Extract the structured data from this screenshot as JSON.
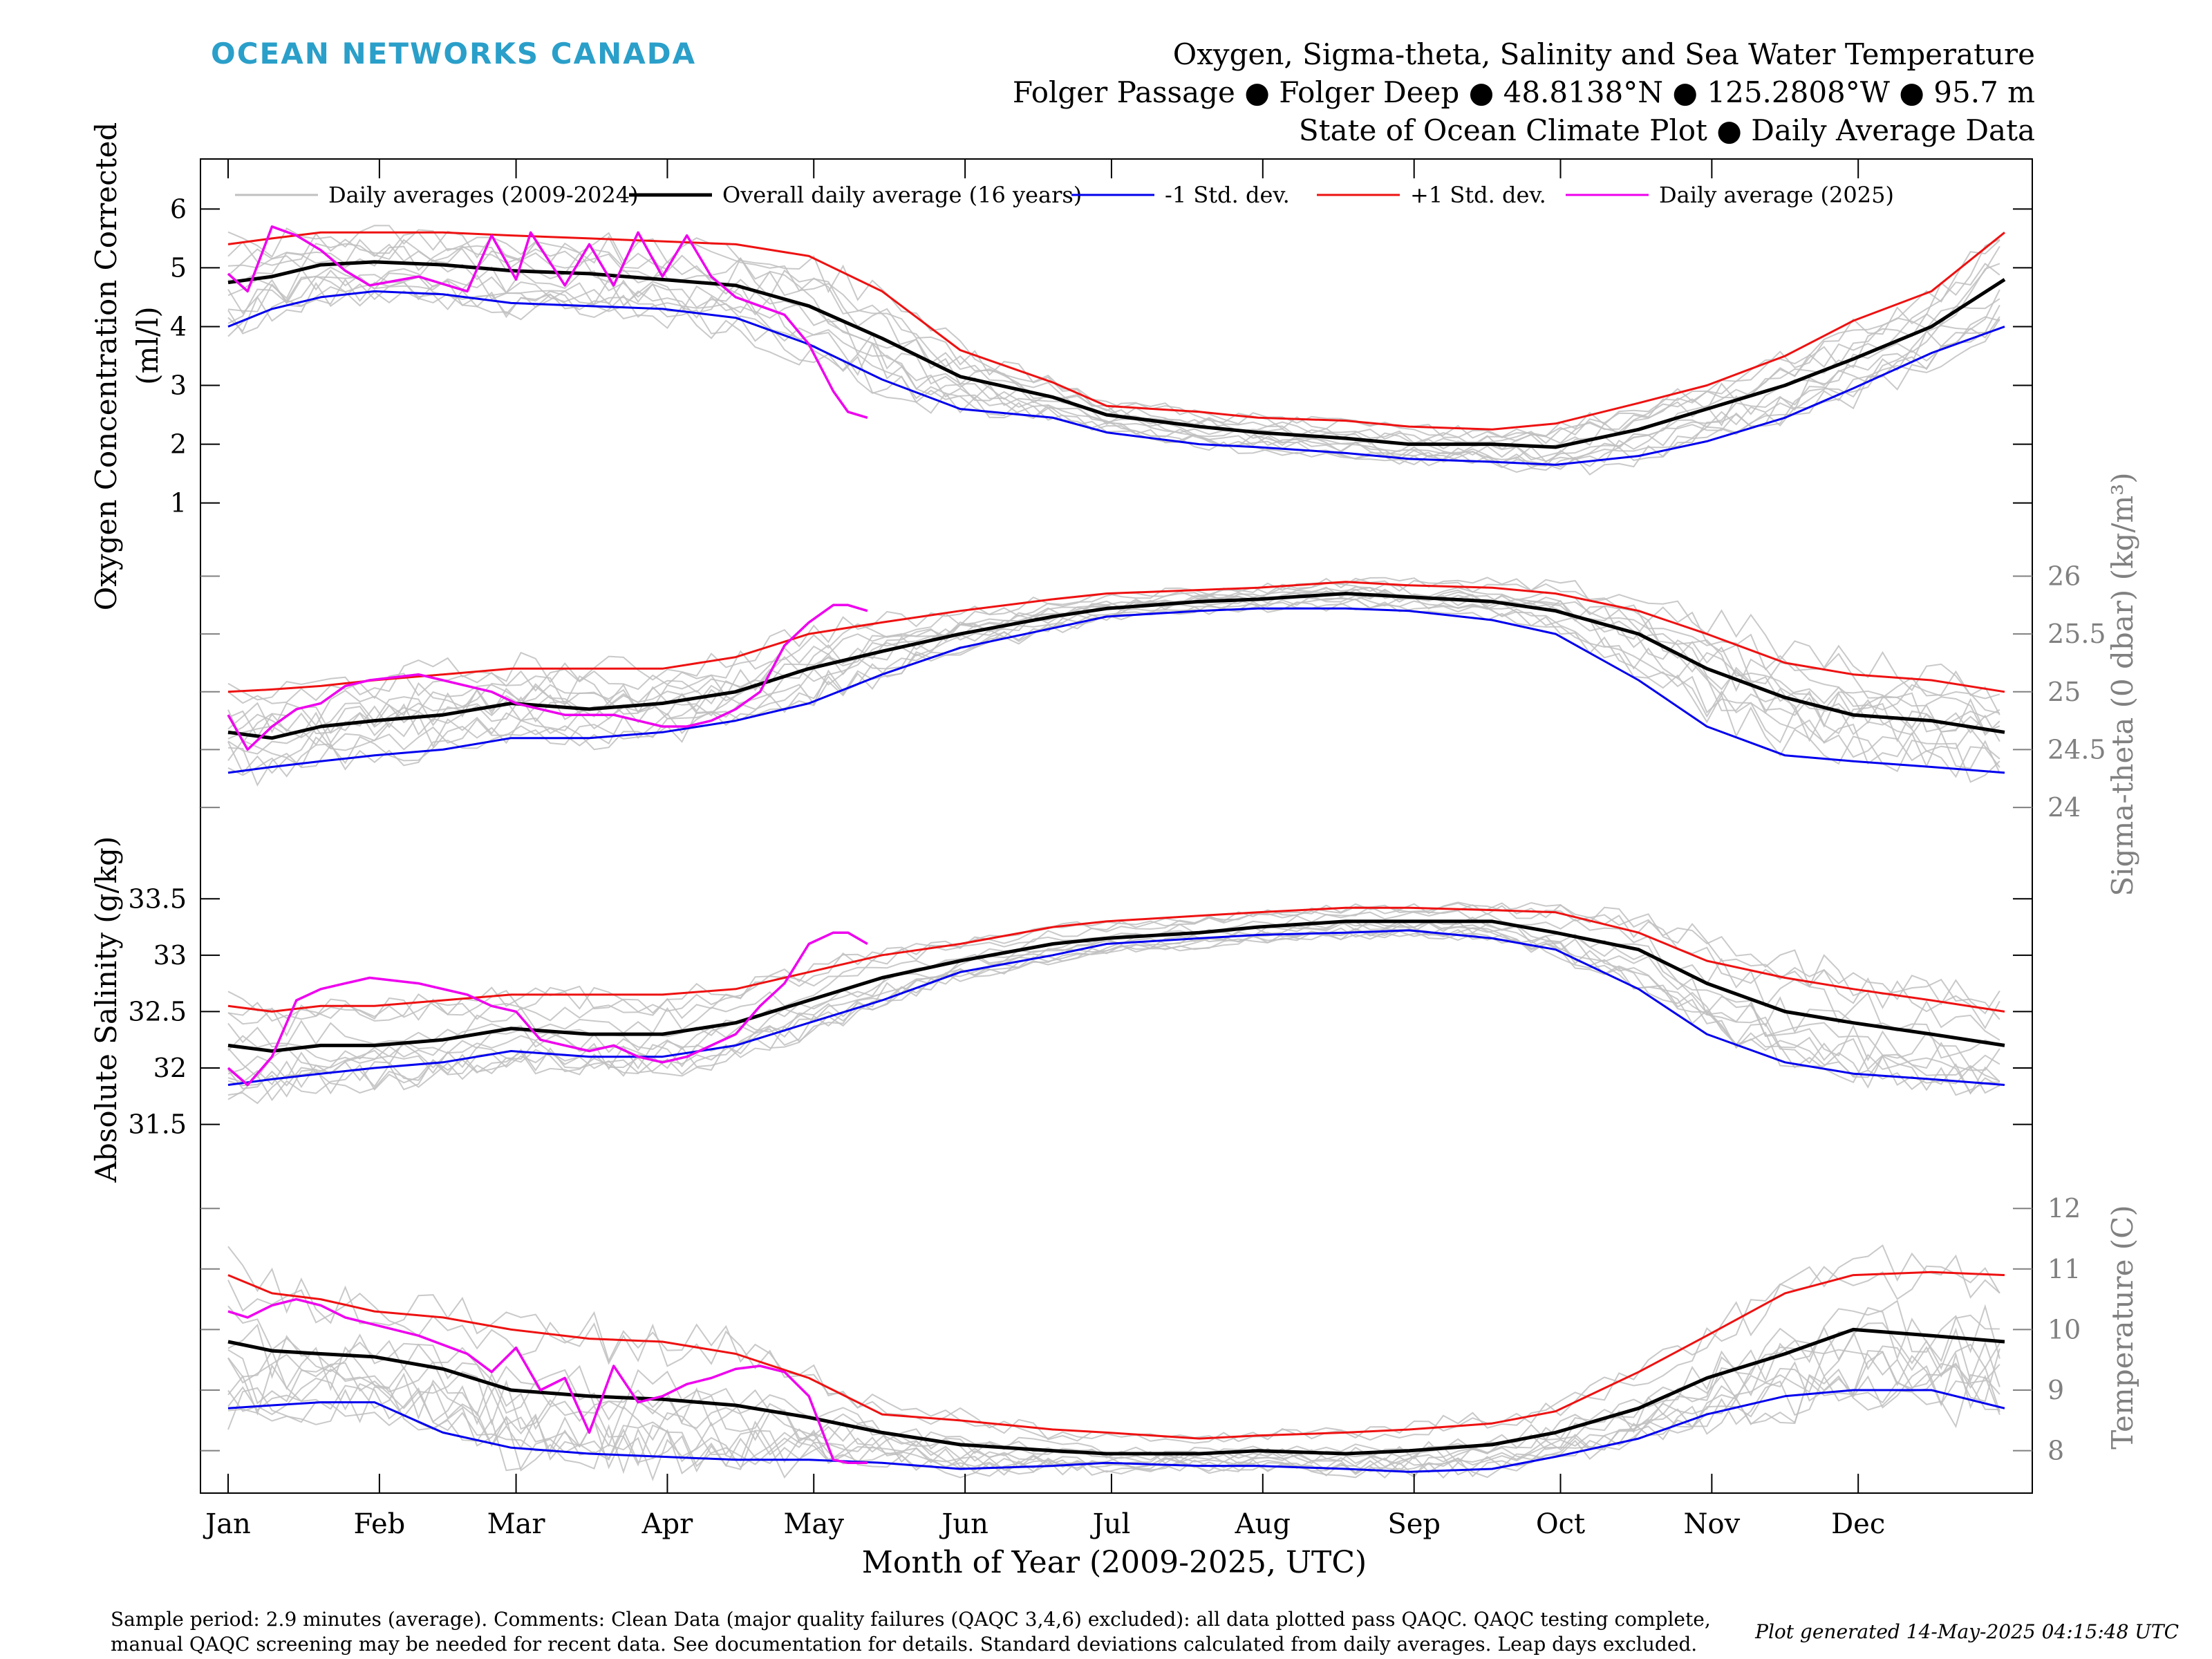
{
  "brand": {
    "name": "OCEAN NETWORKS CANADA",
    "color": "#2a9fc9"
  },
  "header": {
    "title": "Oxygen, Sigma-theta, Salinity and Sea Water Temperature",
    "subtitle1": "Folger Passage ● Folger Deep ● 48.8138°N ● 125.2808°W ● 95.7 m",
    "subtitle2": "State of Ocean Climate Plot ● Daily Average Data"
  },
  "legend": [
    {
      "label": "Daily averages (2009-2024)",
      "color": "#c0c0c0"
    },
    {
      "label": "Overall daily average (16 years)",
      "color": "#000000"
    },
    {
      "label": "-1 Std. dev.",
      "color": "#0000ee"
    },
    {
      "label": "+1 Std. dev.",
      "color": "#ee1111"
    },
    {
      "label": "Daily average (2025)",
      "color": "#ee00ee"
    }
  ],
  "xaxis": {
    "label": "Month of Year (2009-2025, UTC)",
    "months": [
      "Jan",
      "Feb",
      "Mar",
      "Apr",
      "May",
      "Jun",
      "Jul",
      "Aug",
      "Sep",
      "Oct",
      "Nov",
      "Dec"
    ]
  },
  "footer": {
    "note_line1": "Sample period: 2.9 minutes (average). Comments: Clean Data (major quality failures (QAQC 3,4,6) excluded): all data plotted pass QAQC. QAQC testing complete,",
    "note_line2": "manual QAQC screening may be needed for recent data. See documentation for details. Standard deviations calculated from daily averages. Leap days excluded.",
    "generated": "Plot generated 14-May-2025 04:15:48 UTC"
  },
  "colors": {
    "history": "#c0c0c0",
    "mean": "#000000",
    "minus_sd": "#0000ee",
    "plus_sd": "#ee1111",
    "current": "#ee00ee",
    "right_axis": "#808080"
  },
  "chart_data": [
    {
      "type": "line",
      "name": "oxygen",
      "ylabel_line1": "Oxygen Concentration Corrected",
      "ylabel_line2": "(ml/l)",
      "axis_side": "left",
      "ticks": [
        "1",
        "2",
        "3",
        "4",
        "5",
        "6"
      ],
      "x_unit": "day of year",
      "series": [
        {
          "name": "Overall daily average (16 years)",
          "x": [
            1,
            10,
            20,
            31,
            45,
            59,
            75,
            90,
            105,
            120,
            135,
            151,
            170,
            181,
            200,
            212,
            230,
            243,
            260,
            273,
            290,
            304,
            320,
            334,
            350,
            365
          ],
          "y": [
            4.75,
            4.85,
            5.05,
            5.1,
            5.05,
            4.95,
            4.9,
            4.8,
            4.7,
            4.35,
            3.8,
            3.15,
            2.8,
            2.5,
            2.3,
            2.2,
            2.1,
            2.0,
            2.0,
            1.95,
            2.25,
            2.6,
            3.0,
            3.45,
            4.0,
            4.8
          ]
        },
        {
          "name": "-1 Std. dev.",
          "x": [
            1,
            10,
            20,
            31,
            45,
            59,
            75,
            90,
            105,
            120,
            135,
            151,
            170,
            181,
            200,
            212,
            230,
            243,
            260,
            273,
            290,
            304,
            320,
            334,
            350,
            365
          ],
          "y": [
            4.0,
            4.3,
            4.5,
            4.6,
            4.55,
            4.4,
            4.35,
            4.3,
            4.15,
            3.7,
            3.1,
            2.6,
            2.45,
            2.2,
            2.0,
            1.95,
            1.85,
            1.75,
            1.7,
            1.65,
            1.8,
            2.05,
            2.45,
            2.95,
            3.55,
            4.0
          ]
        },
        {
          "name": "+1 Std. dev.",
          "x": [
            1,
            10,
            20,
            31,
            45,
            59,
            75,
            90,
            105,
            120,
            135,
            151,
            170,
            181,
            200,
            212,
            230,
            243,
            260,
            273,
            290,
            304,
            320,
            334,
            350,
            365
          ],
          "y": [
            5.4,
            5.5,
            5.6,
            5.6,
            5.6,
            5.55,
            5.5,
            5.45,
            5.4,
            5.2,
            4.6,
            3.6,
            3.05,
            2.65,
            2.55,
            2.45,
            2.4,
            2.3,
            2.25,
            2.35,
            2.7,
            3.0,
            3.5,
            4.1,
            4.6,
            5.6
          ]
        },
        {
          "name": "Daily average (2025)",
          "x": [
            1,
            5,
            10,
            15,
            20,
            25,
            30,
            40,
            50,
            55,
            60,
            63,
            70,
            75,
            80,
            85,
            90,
            95,
            100,
            105,
            110,
            115,
            120,
            125,
            128,
            132
          ],
          "y": [
            4.9,
            4.6,
            5.7,
            5.55,
            5.3,
            4.95,
            4.7,
            4.85,
            4.6,
            5.55,
            4.8,
            5.6,
            4.7,
            5.4,
            4.7,
            5.6,
            4.85,
            5.55,
            4.85,
            4.5,
            4.35,
            4.2,
            3.7,
            2.9,
            2.55,
            2.45
          ]
        }
      ]
    },
    {
      "type": "line",
      "name": "sigma-theta",
      "ylabel": "Sigma-theta (0 dbar) (kg/m³)",
      "axis_side": "right",
      "ticks": [
        "24",
        "24.5",
        "25",
        "25.5",
        "26"
      ],
      "x_unit": "day of year",
      "series": [
        {
          "name": "Overall daily average (16 years)",
          "x": [
            1,
            10,
            20,
            31,
            45,
            59,
            75,
            90,
            105,
            120,
            135,
            151,
            170,
            181,
            200,
            212,
            230,
            243,
            260,
            273,
            290,
            304,
            320,
            334,
            350,
            365
          ],
          "y": [
            24.65,
            24.6,
            24.7,
            24.75,
            24.8,
            24.9,
            24.85,
            24.9,
            25.0,
            25.2,
            25.35,
            25.5,
            25.65,
            25.72,
            25.78,
            25.8,
            25.85,
            25.82,
            25.78,
            25.7,
            25.5,
            25.2,
            24.95,
            24.8,
            24.75,
            24.65
          ]
        },
        {
          "name": "-1 Std. dev.",
          "x": [
            1,
            10,
            20,
            31,
            45,
            59,
            75,
            90,
            105,
            120,
            135,
            151,
            170,
            181,
            200,
            212,
            230,
            243,
            260,
            273,
            290,
            304,
            320,
            334,
            350,
            365
          ],
          "y": [
            24.3,
            24.35,
            24.4,
            24.45,
            24.5,
            24.6,
            24.6,
            24.65,
            24.75,
            24.9,
            25.15,
            25.38,
            25.55,
            25.65,
            25.7,
            25.72,
            25.72,
            25.7,
            25.62,
            25.5,
            25.1,
            24.7,
            24.45,
            24.4,
            24.35,
            24.3
          ]
        },
        {
          "name": "+1 Std. dev.",
          "x": [
            1,
            10,
            20,
            31,
            45,
            59,
            75,
            90,
            105,
            120,
            135,
            151,
            170,
            181,
            200,
            212,
            230,
            243,
            260,
            273,
            290,
            304,
            320,
            334,
            350,
            365
          ],
          "y": [
            25.0,
            25.02,
            25.05,
            25.1,
            25.15,
            25.2,
            25.2,
            25.2,
            25.3,
            25.5,
            25.6,
            25.7,
            25.8,
            25.85,
            25.88,
            25.9,
            25.95,
            25.92,
            25.9,
            25.85,
            25.7,
            25.5,
            25.25,
            25.15,
            25.1,
            25.0
          ]
        },
        {
          "name": "Daily average (2025)",
          "x": [
            1,
            5,
            10,
            15,
            20,
            25,
            30,
            40,
            50,
            55,
            60,
            65,
            70,
            75,
            80,
            85,
            90,
            95,
            100,
            105,
            110,
            115,
            120,
            125,
            128,
            132
          ],
          "y": [
            24.8,
            24.5,
            24.7,
            24.85,
            24.9,
            25.05,
            25.1,
            25.15,
            25.05,
            25.0,
            24.9,
            24.85,
            24.8,
            24.8,
            24.8,
            24.75,
            24.7,
            24.7,
            24.75,
            24.85,
            25.0,
            25.4,
            25.6,
            25.75,
            25.75,
            25.7
          ]
        }
      ]
    },
    {
      "type": "line",
      "name": "salinity",
      "ylabel": "Absolute Salinity (g/kg)",
      "axis_side": "left",
      "ticks": [
        "31.5",
        "32",
        "32.5",
        "33",
        "33.5"
      ],
      "x_unit": "day of year",
      "series": [
        {
          "name": "Overall daily average (16 years)",
          "x": [
            1,
            10,
            20,
            31,
            45,
            59,
            75,
            90,
            105,
            120,
            135,
            151,
            170,
            181,
            200,
            212,
            230,
            243,
            260,
            273,
            290,
            304,
            320,
            334,
            350,
            365
          ],
          "y": [
            32.2,
            32.15,
            32.2,
            32.2,
            32.25,
            32.35,
            32.3,
            32.3,
            32.4,
            32.6,
            32.8,
            32.95,
            33.1,
            33.15,
            33.2,
            33.25,
            33.3,
            33.3,
            33.3,
            33.2,
            33.05,
            32.75,
            32.5,
            32.4,
            32.3,
            32.2
          ]
        },
        {
          "name": "-1 Std. dev.",
          "x": [
            1,
            10,
            20,
            31,
            45,
            59,
            75,
            90,
            105,
            120,
            135,
            151,
            170,
            181,
            200,
            212,
            230,
            243,
            260,
            273,
            290,
            304,
            320,
            334,
            350,
            365
          ],
          "y": [
            31.85,
            31.9,
            31.95,
            32.0,
            32.05,
            32.15,
            32.1,
            32.1,
            32.2,
            32.4,
            32.6,
            32.85,
            33.0,
            33.1,
            33.15,
            33.18,
            33.2,
            33.22,
            33.15,
            33.05,
            32.7,
            32.3,
            32.05,
            31.95,
            31.9,
            31.85
          ]
        },
        {
          "name": "+1 Std. dev.",
          "x": [
            1,
            10,
            20,
            31,
            45,
            59,
            75,
            90,
            105,
            120,
            135,
            151,
            170,
            181,
            200,
            212,
            230,
            243,
            260,
            273,
            290,
            304,
            320,
            334,
            350,
            365
          ],
          "y": [
            32.55,
            32.5,
            32.55,
            32.55,
            32.6,
            32.65,
            32.65,
            32.65,
            32.7,
            32.85,
            33.0,
            33.1,
            33.25,
            33.3,
            33.35,
            33.38,
            33.42,
            33.42,
            33.4,
            33.38,
            33.2,
            32.95,
            32.8,
            32.7,
            32.6,
            32.5
          ]
        },
        {
          "name": "Daily average (2025)",
          "x": [
            1,
            5,
            10,
            15,
            20,
            25,
            30,
            40,
            50,
            55,
            60,
            65,
            70,
            75,
            80,
            85,
            90,
            95,
            100,
            105,
            110,
            115,
            120,
            125,
            128,
            132
          ],
          "y": [
            32.0,
            31.85,
            32.1,
            32.6,
            32.7,
            32.75,
            32.8,
            32.75,
            32.65,
            32.55,
            32.5,
            32.25,
            32.2,
            32.15,
            32.2,
            32.1,
            32.05,
            32.1,
            32.2,
            32.3,
            32.55,
            32.75,
            33.1,
            33.2,
            33.2,
            33.1
          ]
        }
      ]
    },
    {
      "type": "line",
      "name": "temperature",
      "ylabel": "Temperature (C)",
      "axis_side": "right",
      "ticks": [
        "8",
        "9",
        "10",
        "11",
        "12"
      ],
      "x_unit": "day of year",
      "series": [
        {
          "name": "Overall daily average (16 years)",
          "x": [
            1,
            10,
            20,
            31,
            45,
            59,
            75,
            90,
            105,
            120,
            135,
            151,
            170,
            181,
            200,
            212,
            230,
            243,
            260,
            273,
            290,
            304,
            320,
            334,
            350,
            365
          ],
          "y": [
            9.8,
            9.65,
            9.6,
            9.55,
            9.35,
            9.0,
            8.9,
            8.85,
            8.75,
            8.55,
            8.3,
            8.1,
            8.0,
            7.95,
            7.95,
            8.0,
            7.95,
            8.0,
            8.1,
            8.3,
            8.7,
            9.2,
            9.6,
            10.0,
            9.9,
            9.8
          ]
        },
        {
          "name": "-1 Std. dev.",
          "x": [
            1,
            10,
            20,
            31,
            45,
            59,
            75,
            90,
            105,
            120,
            135,
            151,
            170,
            181,
            200,
            212,
            230,
            243,
            260,
            273,
            290,
            304,
            320,
            334,
            350,
            365
          ],
          "y": [
            8.7,
            8.75,
            8.8,
            8.8,
            8.3,
            8.05,
            7.95,
            7.9,
            7.85,
            7.85,
            7.8,
            7.7,
            7.75,
            7.8,
            7.75,
            7.75,
            7.7,
            7.65,
            7.7,
            7.9,
            8.2,
            8.6,
            8.9,
            9.0,
            9.0,
            8.7
          ]
        },
        {
          "name": "+1 Std. dev.",
          "x": [
            1,
            10,
            20,
            31,
            45,
            59,
            75,
            90,
            105,
            120,
            135,
            151,
            170,
            181,
            200,
            212,
            230,
            243,
            260,
            273,
            290,
            304,
            320,
            334,
            350,
            365
          ],
          "y": [
            10.9,
            10.6,
            10.5,
            10.3,
            10.2,
            10.0,
            9.85,
            9.8,
            9.6,
            9.2,
            8.6,
            8.5,
            8.35,
            8.3,
            8.2,
            8.25,
            8.3,
            8.35,
            8.45,
            8.65,
            9.3,
            9.9,
            10.6,
            10.9,
            10.95,
            10.9
          ]
        },
        {
          "name": "Daily average (2025)",
          "x": [
            1,
            5,
            10,
            15,
            20,
            25,
            30,
            40,
            50,
            55,
            60,
            65,
            70,
            75,
            80,
            85,
            90,
            95,
            100,
            105,
            110,
            115,
            120,
            125,
            128,
            132
          ],
          "y": [
            10.3,
            10.2,
            10.4,
            10.5,
            10.4,
            10.2,
            10.1,
            9.9,
            9.6,
            9.3,
            9.7,
            9.0,
            9.2,
            8.3,
            9.4,
            8.8,
            8.9,
            9.1,
            9.2,
            9.35,
            9.4,
            9.3,
            8.9,
            7.85,
            7.8,
            7.8
          ]
        }
      ]
    }
  ]
}
